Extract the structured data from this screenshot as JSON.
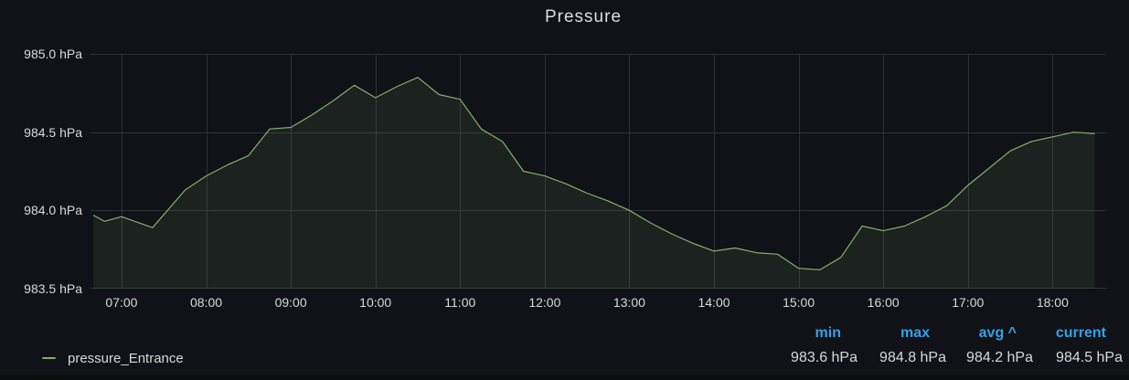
{
  "panel": {
    "title": "Pressure"
  },
  "colors": {
    "background": "#111217",
    "text": "#d8d9da",
    "grid": "#2c3235",
    "series_green": "#7eb26d",
    "series_fill": "rgba(126,178,109,0.10)",
    "header_blue": "#33a2e5"
  },
  "legend": {
    "series": [
      {
        "name": "pressure_Entrance",
        "color": "#7eb26d"
      }
    ],
    "stats": [
      {
        "label": "min",
        "value": "983.6 hPa"
      },
      {
        "label": "max",
        "value": "984.8 hPa"
      },
      {
        "label": "avg ^",
        "value": "984.2 hPa"
      },
      {
        "label": "current",
        "value": "984.5 hPa"
      }
    ]
  },
  "chart_data": {
    "type": "line",
    "title": "Pressure",
    "unit": "hPa",
    "ylim": [
      983.5,
      985.0
    ],
    "xlim": [
      "06:38",
      "18:38"
    ],
    "grid": true,
    "legend_position": "bottom-left",
    "y_ticks": [
      {
        "value": 985.0,
        "label": "985.0 hPa"
      },
      {
        "value": 984.5,
        "label": "984.5 hPa"
      },
      {
        "value": 984.0,
        "label": "984.0 hPa"
      },
      {
        "value": 983.5,
        "label": "983.5 hPa"
      }
    ],
    "x_ticks": [
      "07:00",
      "08:00",
      "09:00",
      "10:00",
      "11:00",
      "12:00",
      "13:00",
      "14:00",
      "15:00",
      "16:00",
      "17:00",
      "18:00"
    ],
    "series": [
      {
        "name": "pressure_Entrance",
        "color": "#7eb26d",
        "stats": {
          "min": "983.6 hPa",
          "max": "984.8 hPa",
          "avg": "984.2 hPa",
          "current": "984.5 hPa"
        },
        "points": [
          [
            "06:40",
            983.97
          ],
          [
            "06:48",
            983.93
          ],
          [
            "07:00",
            983.96
          ],
          [
            "07:22",
            983.89
          ],
          [
            "07:45",
            984.13
          ],
          [
            "08:00",
            984.22
          ],
          [
            "08:15",
            984.29
          ],
          [
            "08:30",
            984.35
          ],
          [
            "08:45",
            984.52
          ],
          [
            "09:00",
            984.53
          ],
          [
            "09:15",
            984.61
          ],
          [
            "09:30",
            984.7
          ],
          [
            "09:45",
            984.8
          ],
          [
            "10:00",
            984.72
          ],
          [
            "10:15",
            984.79
          ],
          [
            "10:30",
            984.85
          ],
          [
            "10:45",
            984.74
          ],
          [
            "11:00",
            984.71
          ],
          [
            "11:15",
            984.52
          ],
          [
            "11:30",
            984.44
          ],
          [
            "11:45",
            984.25
          ],
          [
            "12:00",
            984.22
          ],
          [
            "12:15",
            984.17
          ],
          [
            "12:30",
            984.11
          ],
          [
            "12:45",
            984.06
          ],
          [
            "13:00",
            984.0
          ],
          [
            "13:15",
            983.92
          ],
          [
            "13:30",
            983.85
          ],
          [
            "13:45",
            983.79
          ],
          [
            "14:00",
            983.74
          ],
          [
            "14:15",
            983.76
          ],
          [
            "14:30",
            983.73
          ],
          [
            "14:45",
            983.72
          ],
          [
            "15:00",
            983.63
          ],
          [
            "15:15",
            983.62
          ],
          [
            "15:30",
            983.7
          ],
          [
            "15:45",
            983.9
          ],
          [
            "16:00",
            983.87
          ],
          [
            "16:15",
            983.9
          ],
          [
            "16:30",
            983.96
          ],
          [
            "16:45",
            984.03
          ],
          [
            "17:00",
            984.16
          ],
          [
            "17:15",
            984.27
          ],
          [
            "17:30",
            984.38
          ],
          [
            "17:45",
            984.44
          ],
          [
            "18:00",
            984.47
          ],
          [
            "18:15",
            984.5
          ],
          [
            "18:30",
            984.49
          ]
        ]
      }
    ]
  }
}
